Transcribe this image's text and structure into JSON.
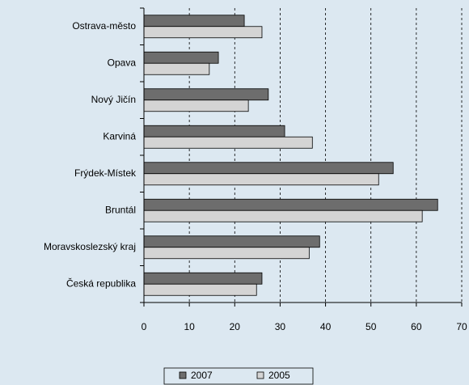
{
  "chart_data": {
    "type": "bar",
    "orientation": "horizontal",
    "categories": [
      "Ostrava-město",
      "Opava",
      "Nový Jičín",
      "Karviná",
      "Frýdek-Místek",
      "Bruntál",
      "Moravskoslezský kraj",
      "Česká republika"
    ],
    "series": [
      {
        "name": "2007",
        "color": "#6d6d6d",
        "values": [
          22.1,
          16.4,
          27.4,
          31.0,
          54.9,
          64.7,
          38.7,
          26.0
        ]
      },
      {
        "name": "2005",
        "color": "#d4d4d4",
        "values": [
          26.0,
          14.4,
          23.0,
          37.1,
          51.7,
          61.3,
          36.4,
          24.8
        ]
      }
    ],
    "xlim": [
      0,
      70
    ],
    "xticks": [
      0,
      10,
      20,
      30,
      40,
      50,
      60,
      70
    ],
    "grid": true,
    "legend": "bottom"
  }
}
